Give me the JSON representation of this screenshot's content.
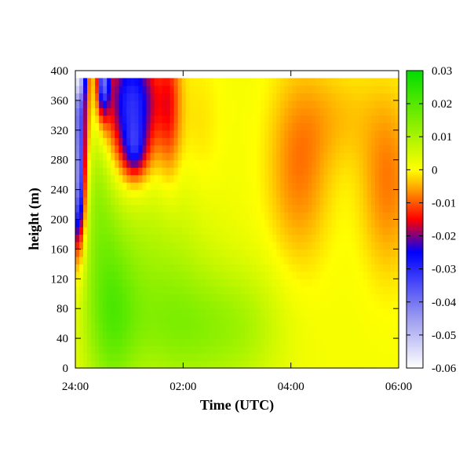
{
  "chart_data": {
    "type": "heatmap",
    "title": "",
    "xlabel": "Time (UTC)",
    "ylabel": "height (m)",
    "xlim_hours": [
      0,
      6
    ],
    "x_ticks": [
      {
        "value": 0,
        "label": "24:00"
      },
      {
        "value": 2,
        "label": "02:00"
      },
      {
        "value": 4,
        "label": "04:00"
      },
      {
        "value": 6,
        "label": "06:00"
      }
    ],
    "ylim": [
      0,
      400
    ],
    "y_ticks": [
      "0",
      "40",
      "80",
      "120",
      "160",
      "200",
      "240",
      "280",
      "320",
      "360",
      "400"
    ],
    "colorbar": {
      "range": [
        -0.06,
        0.03
      ],
      "ticks": [
        "0.03",
        "0.02",
        "0.01",
        "0",
        "-0.01",
        "-0.02",
        "-0.03",
        "-0.04",
        "-0.05",
        "-0.06"
      ],
      "stops": [
        {
          "value": -0.06,
          "color": "#ffffff"
        },
        {
          "value": -0.045,
          "color": "#9c9cf0"
        },
        {
          "value": -0.025,
          "color": "#0000ff"
        },
        {
          "value": -0.015,
          "color": "#ff0000"
        },
        {
          "value": -0.007,
          "color": "#ff8c00"
        },
        {
          "value": 0.0,
          "color": "#ffff00"
        },
        {
          "value": 0.03,
          "color": "#00dd00"
        }
      ]
    },
    "data_top_height": 390,
    "field_features": [
      {
        "kind": "background",
        "value": 0.001
      },
      {
        "kind": "blob",
        "t": 0.65,
        "h": 70,
        "st": 0.35,
        "sh": 90,
        "amp": 0.014
      },
      {
        "kind": "blob",
        "t": 2.1,
        "h": 50,
        "st": 0.9,
        "sh": 60,
        "amp": 0.011
      },
      {
        "kind": "blob",
        "t": 1.5,
        "h": 150,
        "st": 0.7,
        "sh": 90,
        "amp": 0.007
      },
      {
        "kind": "blob",
        "t": 0.4,
        "h": 250,
        "st": 0.25,
        "sh": 90,
        "amp": 0.009
      },
      {
        "kind": "blob",
        "t": 3.2,
        "h": 60,
        "st": 0.5,
        "sh": 60,
        "amp": 0.004
      },
      {
        "kind": "blob",
        "t": 0.05,
        "h": 330,
        "st": 0.12,
        "sh": 100,
        "amp": -0.04
      },
      {
        "kind": "blob",
        "t": 0.05,
        "h": 230,
        "st": 0.08,
        "sh": 50,
        "amp": -0.02
      },
      {
        "kind": "blob",
        "t": 0.05,
        "h": 392,
        "st": 0.09,
        "sh": 22,
        "amp": -0.025
      },
      {
        "kind": "blob",
        "t": 0.52,
        "h": 390,
        "st": 0.08,
        "sh": 35,
        "amp": -0.035
      },
      {
        "kind": "blob",
        "t": 1.05,
        "h": 355,
        "st": 0.35,
        "sh": 60,
        "amp": -0.032
      },
      {
        "kind": "blob",
        "t": 1.1,
        "h": 292,
        "st": 0.15,
        "sh": 25,
        "amp": -0.015
      },
      {
        "kind": "blob",
        "t": 1.75,
        "h": 350,
        "st": 0.15,
        "sh": 70,
        "amp": -0.012
      },
      {
        "kind": "blob",
        "t": 2.3,
        "h": 320,
        "st": 0.3,
        "sh": 70,
        "amp": -0.003
      },
      {
        "kind": "blob",
        "t": 4.15,
        "h": 270,
        "st": 0.4,
        "sh": 90,
        "amp": -0.009
      },
      {
        "kind": "blob",
        "t": 5.8,
        "h": 250,
        "st": 0.35,
        "sh": 85,
        "amp": -0.009
      },
      {
        "kind": "blob",
        "t": 4.9,
        "h": 340,
        "st": 0.5,
        "sh": 50,
        "amp": -0.004
      }
    ]
  }
}
